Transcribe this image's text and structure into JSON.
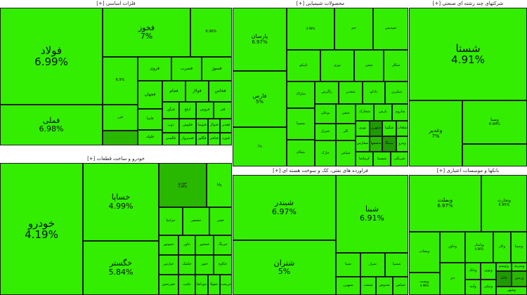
{
  "panels": [
    {
      "title": "[+] فلزات اساسی",
      "tiles": [
        {
          "name": "فولاد",
          "pct": "6.99%"
        },
        {
          "name": "فملی",
          "pct": "6.98%"
        },
        {
          "name": "فخوز",
          "pct": "7%"
        },
        {
          "name": "",
          "pct": "6.96%"
        },
        {
          "name": "فروی"
        },
        {
          "name": "فسرب"
        },
        {
          "name": "فسوژ"
        },
        {
          "name": "",
          "pct": "6.9%"
        },
        {
          "name": "فجهان"
        },
        {
          "name": "فجام"
        },
        {
          "name": "فولاژ"
        },
        {
          "name": "فخاس"
        },
        {
          "name": "فزر"
        },
        {
          "name": "فرآور"
        },
        {
          "name": "ارفع"
        },
        {
          "name": "فروس"
        },
        {
          "name": "فنر"
        },
        {
          "name": "فاسا"
        },
        {
          "name": "فلوله"
        },
        {
          "name": "ذوب"
        },
        {
          "name": "فگستر"
        },
        {
          "name": "فکوش"
        },
        {
          "name": "فسبزوار"
        },
        {
          "name": "فتوسا"
        },
        {
          "name": "فنوال"
        },
        {
          "name": "فغدیر"
        },
        {
          "name": "فگلور"
        },
        {
          "name": "فباهنر"
        },
        {
          "name": "فنورد"
        }
      ]
    },
    {
      "title": "[+] محصولات شیمیایی",
      "tiles": [
        {
          "name": "پارسان",
          "pct": "6.97%"
        },
        {
          "name": "فارس",
          "pct": "5%"
        },
        {
          "name": "",
          "pct": "7%"
        },
        {
          "name": "",
          "pct": "4.98%"
        },
        {
          "name": "جم"
        },
        {
          "name": "شپدیس"
        },
        {
          "name": "تاپیکو"
        },
        {
          "name": "نوری"
        },
        {
          "name": "شفن"
        },
        {
          "name": "شکلر"
        },
        {
          "name": "شاراک"
        },
        {
          "name": "زاگرس"
        },
        {
          "name": "شغدیر"
        },
        {
          "name": "نادکو"
        },
        {
          "name": "شکربن"
        },
        {
          "name": "بوعلی"
        },
        {
          "name": "شفن"
        },
        {
          "name": "شخارک"
        },
        {
          "name": "پارس"
        },
        {
          "name": "شاروم"
        },
        {
          "name": "شسپا"
        },
        {
          "name": "شیراز"
        },
        {
          "name": "کلر"
        },
        {
          "name": "نوری"
        },
        {
          "name": "شبهرن"
        },
        {
          "name": "شگویا"
        },
        {
          "name": "شلعاب"
        },
        {
          "name": "شکام"
        },
        {
          "name": "خارک"
        },
        {
          "name": "شپاس"
        },
        {
          "name": "شفارس"
        },
        {
          "name": "شصفها"
        },
        {
          "name": "سمگا"
        },
        {
          "name": "وپترو"
        },
        {
          "name": "کرماشا"
        },
        {
          "name": "شسینا"
        },
        {
          "name": "شرنگی"
        }
      ]
    },
    {
      "title": "[+] شرکتهای چند رشته ای صنعتی",
      "tiles": [
        {
          "name": "شستا",
          "pct": "4.91%"
        },
        {
          "name": "وغدیر",
          "pct": "7%"
        },
        {
          "name": "وصنا",
          "pct": "6.84%"
        },
        {
          "name": "",
          "pct": ""
        }
      ]
    },
    {
      "title": "[+] خودرو و ساخت قطعات",
      "tiles": [
        {
          "name": "خودرو",
          "pct": "4.19%"
        },
        {
          "name": "خساپا",
          "pct": "4.99%"
        },
        {
          "name": "خگستر",
          "pct": "5.84%"
        },
        {
          "name": "خودرو",
          "pct": "3.86%"
        },
        {
          "name": "ولتا"
        },
        {
          "name": "خزامیا"
        },
        {
          "name": "خشصر"
        },
        {
          "name": "خفنر"
        },
        {
          "name": "خموتور"
        },
        {
          "name": "خاور"
        },
        {
          "name": "خمحور"
        },
        {
          "name": "خرینگ"
        },
        {
          "name": "خپارس"
        },
        {
          "name": "خکمک"
        },
        {
          "name": "ختور"
        },
        {
          "name": "خکاوه"
        },
        {
          "name": "خچرخش"
        },
        {
          "name": "خلنت"
        },
        {
          "name": "خودکفا"
        },
        {
          "name": "خفولا"
        },
        {
          "name": "خریخت"
        }
      ]
    },
    {
      "title": "[+] فراورده های نفتی، کک و سوخت هسته ای",
      "tiles": [
        {
          "name": "شبندر",
          "pct": "6.97%"
        },
        {
          "name": "شبنا",
          "pct": "6.91%"
        },
        {
          "name": "شتران",
          "pct": "5%"
        },
        {
          "name": "شپنا"
        },
        {
          "name": "شراز"
        },
        {
          "name": "شسپا"
        },
        {
          "name": "شبهرن"
        },
        {
          "name": "شنفت"
        },
        {
          "name": "شدوص"
        },
        {
          "name": "شپاس"
        }
      ]
    },
    {
      "title": "[+] بانکها و موسسات اعتباری",
      "tiles": [
        {
          "name": "وبملت",
          "pct": "6.97%"
        },
        {
          "name": "وتجارت",
          "pct": "6.95%"
        },
        {
          "name": "وبصادر"
        },
        {
          "name": "وپست",
          "pct": "4.98%"
        },
        {
          "name": "وخاور"
        },
        {
          "name": "وپاسار",
          "pct": "4.86%"
        },
        {
          "name": "وکار"
        },
        {
          "name": "وسینا"
        },
        {
          "name": "دی"
        },
        {
          "name": "وبانک"
        },
        {
          "name": "ونوین"
        },
        {
          "name": "وتوسم"
        },
        {
          "name": "وسرمد"
        },
        {
          "name": "وآیند"
        },
        {
          "name": "ونیکی"
        },
        {
          "name": "وشهر"
        },
        {
          "name": "حانک"
        },
        {
          "name": "وزمین"
        }
      ]
    }
  ],
  "colors": {
    "up": "#33ee00",
    "up_mid": "#29b800",
    "up_dark": "#1f9a00",
    "border": "#1c1c1c"
  }
}
